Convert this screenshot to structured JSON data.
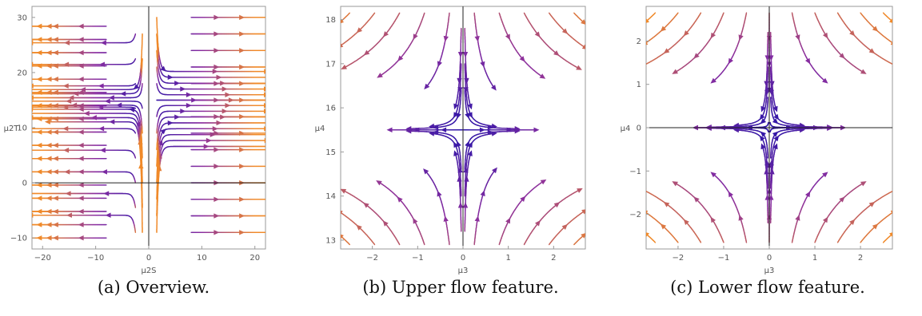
{
  "colors": {
    "frame": "#9a9a9a",
    "axis": "#222222",
    "slow": "#2a14a8",
    "mid": "#8a2ea0",
    "fast": "#f08a2a"
  },
  "chart_data": [
    {
      "type": "streamplot",
      "caption": "(a) Overview.",
      "xlabel": "μ2S",
      "ylabel": "μ2T",
      "xlim": [
        -22,
        22
      ],
      "ylim": [
        -12,
        32
      ],
      "xticks": [
        -20,
        -10,
        0,
        10,
        20
      ],
      "yticks": [
        -10,
        0,
        10,
        20,
        30
      ],
      "xtick_labels": [
        "−20",
        "−10",
        "0",
        "10",
        "20"
      ],
      "ytick_labels": [
        "−10",
        "0",
        "10",
        "20",
        "30"
      ],
      "flow": "dμ2S/dt = 0.5·μ2S, dμ2T/dt = −3·(μ2T − 15)·exp(−μ2S²/3)"
    },
    {
      "type": "streamplot",
      "caption": "(b) Upper flow feature.",
      "xlabel": "μ3",
      "ylabel": "μ4",
      "xlim": [
        -2.7,
        2.7
      ],
      "ylim": [
        12.8,
        18.3
      ],
      "xticks": [
        -2,
        -1,
        0,
        1,
        2
      ],
      "yticks": [
        13,
        14,
        15,
        16,
        17,
        18
      ],
      "xtick_labels": [
        "−2",
        "−1",
        "0",
        "1",
        "2"
      ],
      "ytick_labels": [
        "13",
        "14",
        "15",
        "16",
        "17",
        "18"
      ],
      "flow": "saddle: dμ3/dt = μ3, dμ4/dt = −(μ4 − 15.5)"
    },
    {
      "type": "streamplot",
      "caption": "(c) Lower flow feature.",
      "xlabel": "μ3",
      "ylabel": "μ4",
      "xlim": [
        -2.7,
        2.7
      ],
      "ylim": [
        -2.8,
        2.8
      ],
      "xticks": [
        -2,
        -1,
        0,
        1,
        2
      ],
      "yticks": [
        -2,
        -1,
        0,
        1,
        2
      ],
      "xtick_labels": [
        "−2",
        "−1",
        "0",
        "1",
        "2"
      ],
      "ytick_labels": [
        "−2",
        "−1",
        "0",
        "1",
        "2"
      ],
      "flow": "saddle: dμ3/dt = μ3, dμ4/dt = −μ4 (outward along μ3, inward along μ4)"
    }
  ]
}
